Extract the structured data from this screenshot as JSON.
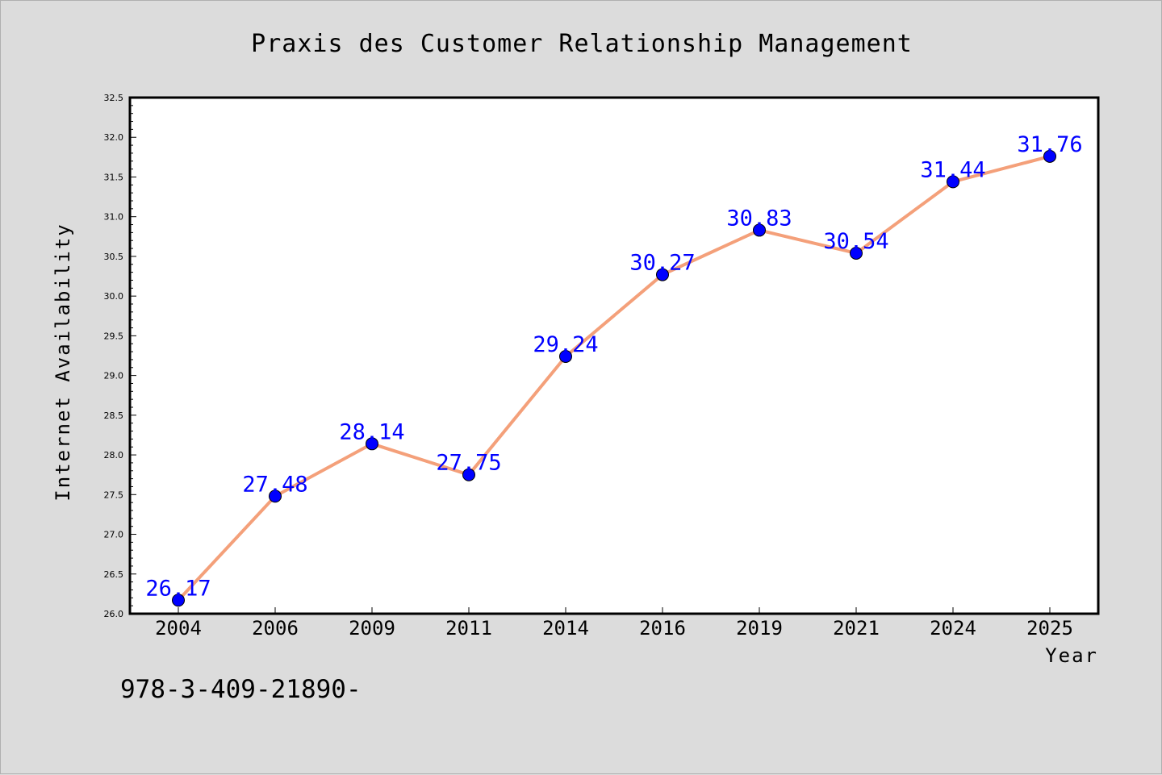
{
  "chart_data": {
    "type": "line",
    "title": "Praxis des Customer Relationship Management",
    "xlabel": "Year",
    "ylabel": "Internet Availability",
    "categories": [
      "2004",
      "2006",
      "2009",
      "2011",
      "2014",
      "2016",
      "2019",
      "2021",
      "2024",
      "2025"
    ],
    "series": [
      {
        "values": [
          26.17,
          27.48,
          28.14,
          27.75,
          29.24,
          30.27,
          30.83,
          30.54,
          31.44,
          31.76
        ],
        "labels": [
          "26.17",
          "27.48",
          "28.14",
          "27.75",
          "29.24",
          "30.27",
          "30.83",
          "30.54",
          "31.44",
          "31.76"
        ],
        "line_color": "#f4a07a",
        "marker_color": "#0000ff"
      }
    ],
    "ylim": [
      26.0,
      32.5
    ],
    "yticks": [
      "26.0",
      "26.5",
      "27.0",
      "27.5",
      "28.0",
      "28.5",
      "29.0",
      "29.5",
      "30.0",
      "30.5",
      "31.0",
      "31.5",
      "32.0",
      "32.5"
    ],
    "grid": false,
    "legend": "none",
    "plot_background": "#ffffff",
    "figure_background": "#dcdcdc"
  },
  "footer": {
    "text": "978-3-409-21890-"
  }
}
